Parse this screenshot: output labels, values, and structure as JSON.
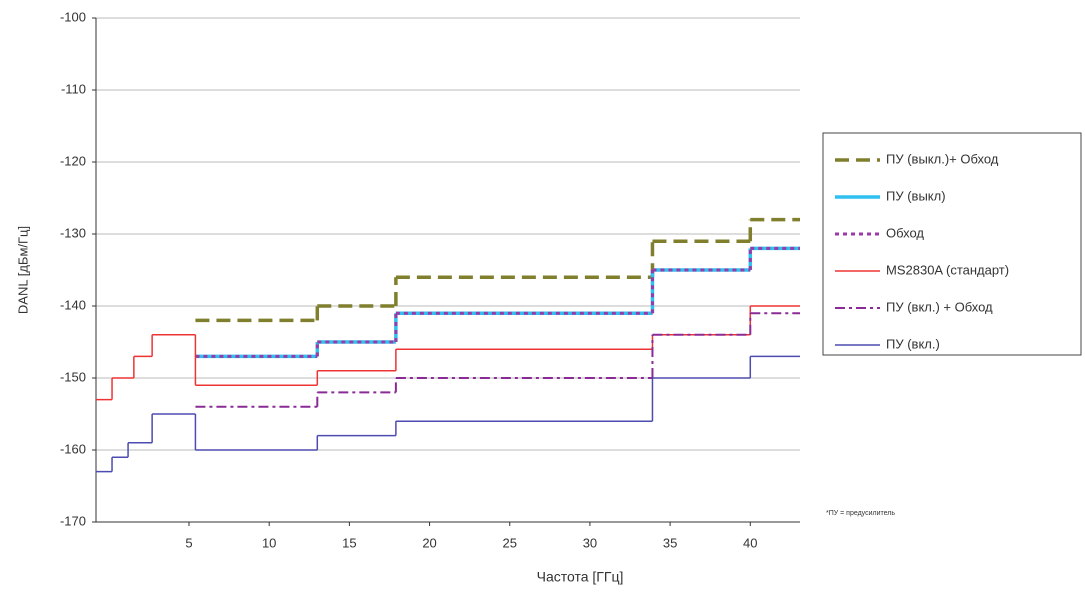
{
  "chart_data": {
    "type": "step",
    "x_label": "Частота [ГГц]",
    "y_label": "DANL [дБм/Гц]",
    "footnote": "*ПУ = предусилитель",
    "xlim": [
      -0.8,
      43.1
    ],
    "ylim": [
      -170,
      -100
    ],
    "xticks": [
      5,
      10,
      15,
      20,
      25,
      30,
      35,
      40
    ],
    "yticks": [
      -100,
      -110,
      -120,
      -130,
      -140,
      -150,
      -160,
      -170
    ],
    "grid": true,
    "series": [
      {
        "name": "ПУ (выкл.)+ Обход",
        "color": "#7f7f2e",
        "dash": "14,7",
        "width": 3.5,
        "x": [
          5.4,
          13.0,
          17.9,
          33.9,
          40.0
        ],
        "values": [
          -142,
          -140,
          -136,
          -131,
          -128
        ]
      },
      {
        "name": "ПУ (выкл)",
        "color": "#2fc0f0",
        "dash": "none",
        "width": 3.5,
        "x": [
          5.4,
          13.0,
          17.9,
          33.9,
          40.0
        ],
        "values": [
          -147,
          -145,
          -141,
          -135,
          -132
        ]
      },
      {
        "name": "Обход",
        "color": "#9a3aa6",
        "dash": "4,4",
        "width": 3,
        "x": [
          5.4,
          13.0,
          17.9,
          33.9,
          40.0
        ],
        "values": [
          -147,
          -145,
          -141,
          -135,
          -132
        ]
      },
      {
        "name": "MS2830A (стандарт)",
        "color": "#ee3333",
        "dash": "none",
        "width": 1.5,
        "x": [
          -0.8,
          0.2,
          1.56,
          2.7,
          5.4,
          13.0,
          17.9,
          33.9,
          40.0
        ],
        "values": [
          -153,
          -150,
          -147,
          -144,
          -151,
          -149,
          -146,
          -144,
          -140
        ]
      },
      {
        "name": "ПУ (вкл.) + Обход",
        "color": "#8a2a96",
        "dash": "10,4,3,4",
        "width": 2,
        "x": [
          5.4,
          13.0,
          17.9,
          33.9,
          40.0
        ],
        "values": [
          -154,
          -152,
          -150,
          -144,
          -141
        ]
      },
      {
        "name": "ПУ (вкл.)",
        "color": "#4b4bb0",
        "dash": "none",
        "width": 1.5,
        "x": [
          -0.8,
          0.2,
          1.2,
          2.7,
          5.4,
          13.0,
          17.9,
          33.9,
          40.0
        ],
        "values": [
          -163,
          -161,
          -159,
          -155,
          -160,
          -158,
          -156,
          -150,
          -147
        ]
      }
    ]
  }
}
